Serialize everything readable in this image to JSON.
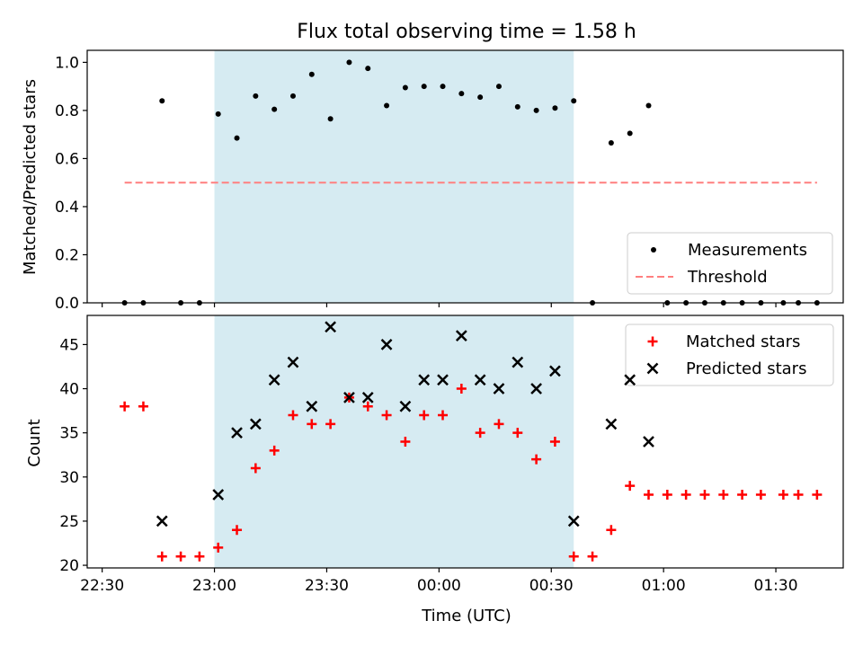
{
  "figure": {
    "title": "Flux total observing time = 1.58 h"
  },
  "colors": {
    "shade": "#add8e6",
    "measurements": "#000000",
    "threshold": "#ff7f7f",
    "matched": "#ff0000",
    "predicted": "#000000"
  },
  "chart_data": [
    {
      "type": "scatter",
      "panel": "top",
      "ylabel": "Matched/Predicted stars",
      "ylim": [
        0,
        1.05
      ],
      "xlim": [
        "22:26",
        "01:48"
      ],
      "x_ticks": [
        "22:30",
        "23:00",
        "23:30",
        "00:00",
        "00:30",
        "01:00",
        "01:30"
      ],
      "y_ticks": [
        "0.0",
        "0.2",
        "0.4",
        "0.6",
        "0.8",
        "1.0"
      ],
      "tick_labels_shown": false,
      "observing_window": [
        "23:00",
        "00:36"
      ],
      "series": [
        {
          "name": "Measurements",
          "marker": "dot",
          "points": [
            [
              "22:36",
              0.0
            ],
            [
              "22:41",
              0.0
            ],
            [
              "22:46",
              0.84
            ],
            [
              "22:51",
              0.0
            ],
            [
              "22:56",
              0.0
            ],
            [
              "23:01",
              0.785
            ],
            [
              "23:06",
              0.685
            ],
            [
              "23:11",
              0.86
            ],
            [
              "23:16",
              0.805
            ],
            [
              "23:21",
              0.86
            ],
            [
              "23:26",
              0.95
            ],
            [
              "23:31",
              0.765
            ],
            [
              "23:36",
              1.0
            ],
            [
              "23:41",
              0.975
            ],
            [
              "23:46",
              0.82
            ],
            [
              "23:51",
              0.895
            ],
            [
              "23:56",
              0.9
            ],
            [
              "00:01",
              0.9
            ],
            [
              "00:06",
              0.87
            ],
            [
              "00:11",
              0.855
            ],
            [
              "00:16",
              0.9
            ],
            [
              "00:21",
              0.815
            ],
            [
              "00:26",
              0.8
            ],
            [
              "00:31",
              0.81
            ],
            [
              "00:36",
              0.84
            ],
            [
              "00:41",
              0.0
            ],
            [
              "00:46",
              0.665
            ],
            [
              "00:51",
              0.705
            ],
            [
              "00:56",
              0.82
            ],
            [
              "01:01",
              0.0
            ],
            [
              "01:06",
              0.0
            ],
            [
              "01:11",
              0.0
            ],
            [
              "01:16",
              0.0
            ],
            [
              "01:21",
              0.0
            ],
            [
              "01:26",
              0.0
            ],
            [
              "01:32",
              0.0
            ],
            [
              "01:36",
              0.0
            ],
            [
              "01:41",
              0.0
            ]
          ]
        },
        {
          "name": "Threshold",
          "marker": "dashed-line",
          "points": [
            [
              "22:36",
              0.5
            ],
            [
              "01:41",
              0.5
            ]
          ]
        }
      ],
      "legend": "lower-right"
    },
    {
      "type": "scatter",
      "panel": "bottom",
      "ylabel": "Count",
      "xlabel": "Time (UTC)",
      "ylim": [
        19.7,
        48.3
      ],
      "xlim": [
        "22:26",
        "01:48"
      ],
      "x_ticks": [
        "22:30",
        "23:00",
        "23:30",
        "00:00",
        "00:30",
        "01:00",
        "01:30"
      ],
      "y_ticks": [
        "20",
        "25",
        "30",
        "35",
        "40",
        "45"
      ],
      "observing_window": [
        "23:00",
        "00:36"
      ],
      "series": [
        {
          "name": "Matched stars",
          "marker": "plus",
          "points": [
            [
              "22:36",
              38
            ],
            [
              "22:41",
              38
            ],
            [
              "22:46",
              21
            ],
            [
              "22:51",
              21
            ],
            [
              "22:56",
              21
            ],
            [
              "23:01",
              22
            ],
            [
              "23:06",
              24
            ],
            [
              "23:11",
              31
            ],
            [
              "23:16",
              33
            ],
            [
              "23:21",
              37
            ],
            [
              "23:26",
              36
            ],
            [
              "23:31",
              36
            ],
            [
              "23:36",
              39
            ],
            [
              "23:41",
              38
            ],
            [
              "23:46",
              37
            ],
            [
              "23:51",
              34
            ],
            [
              "23:56",
              37
            ],
            [
              "00:01",
              37
            ],
            [
              "00:06",
              40
            ],
            [
              "00:11",
              35
            ],
            [
              "00:16",
              36
            ],
            [
              "00:21",
              35
            ],
            [
              "00:26",
              32
            ],
            [
              "00:31",
              34
            ],
            [
              "00:36",
              21
            ],
            [
              "00:41",
              21
            ],
            [
              "00:46",
              24
            ],
            [
              "00:51",
              29
            ],
            [
              "00:56",
              28
            ],
            [
              "01:01",
              28
            ],
            [
              "01:06",
              28
            ],
            [
              "01:11",
              28
            ],
            [
              "01:16",
              28
            ],
            [
              "01:21",
              28
            ],
            [
              "01:26",
              28
            ],
            [
              "01:32",
              28
            ],
            [
              "01:36",
              28
            ],
            [
              "01:41",
              28
            ]
          ]
        },
        {
          "name": "Predicted stars",
          "marker": "x",
          "points": [
            [
              "22:46",
              25
            ],
            [
              "23:01",
              28
            ],
            [
              "23:06",
              35
            ],
            [
              "23:11",
              36
            ],
            [
              "23:16",
              41
            ],
            [
              "23:21",
              43
            ],
            [
              "23:26",
              38
            ],
            [
              "23:31",
              47
            ],
            [
              "23:36",
              39
            ],
            [
              "23:41",
              39
            ],
            [
              "23:46",
              45
            ],
            [
              "23:51",
              38
            ],
            [
              "23:56",
              41
            ],
            [
              "00:01",
              41
            ],
            [
              "00:06",
              46
            ],
            [
              "00:11",
              41
            ],
            [
              "00:16",
              40
            ],
            [
              "00:21",
              43
            ],
            [
              "00:26",
              40
            ],
            [
              "00:31",
              42
            ],
            [
              "00:36",
              25
            ],
            [
              "00:46",
              36
            ],
            [
              "00:51",
              41
            ],
            [
              "00:56",
              34
            ]
          ]
        }
      ],
      "legend": "upper-right"
    }
  ]
}
